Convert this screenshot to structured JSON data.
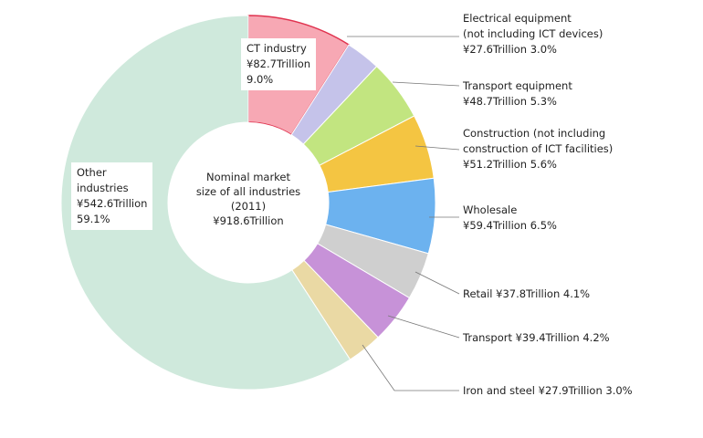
{
  "chart_data": {
    "type": "pie",
    "variant": "donut",
    "center_label": [
      "Nominal market",
      "size of all industries",
      "(2011)",
      "¥918.6Trillion"
    ],
    "slices": [
      {
        "name": "CT industry",
        "value": 82.7,
        "share": 9.0,
        "color": "#f7a8b4",
        "lines": [
          "CT industry",
          "¥82.7Trillion",
          "9.0%"
        ]
      },
      {
        "name": "Electrical equipment (not including ICT devices)",
        "value": 27.6,
        "share": 3.0,
        "color": "#c5c3ea",
        "lines": [
          "Electrical equipment",
          "(not including ICT devices)",
          "¥27.6Trillion  3.0%"
        ]
      },
      {
        "name": "Transport equipment",
        "value": 48.7,
        "share": 5.3,
        "color": "#c2e580",
        "lines": [
          "Transport equipment",
          "¥48.7Trillion  5.3%"
        ]
      },
      {
        "name": "Construction (not including construction of ICT facilities)",
        "value": 51.2,
        "share": 5.6,
        "color": "#f4c542",
        "lines": [
          "Construction (not including",
          "construction of ICT facilities)",
          "¥51.2Trillion  5.6%"
        ]
      },
      {
        "name": "Wholesale",
        "value": 59.4,
        "share": 6.5,
        "color": "#6cb2ef",
        "lines": [
          "Wholesale",
          "¥59.4Trillion  6.5%"
        ]
      },
      {
        "name": "Retail",
        "value": 37.8,
        "share": 4.1,
        "color": "#cfcfcf",
        "lines": [
          "Retail ¥37.8Trillion  4.1%"
        ]
      },
      {
        "name": "Transport",
        "value": 39.4,
        "share": 4.2,
        "color": "#c792d8",
        "lines": [
          "Transport ¥39.4Trillion  4.2%"
        ]
      },
      {
        "name": "Iron and steel",
        "value": 27.9,
        "share": 3.0,
        "color": "#ead9a4",
        "lines": [
          "Iron and steel ¥27.9Trillion  3.0%"
        ]
      },
      {
        "name": "Other industries",
        "value": 542.6,
        "share": 59.1,
        "color": "#cfe9dc",
        "lines": [
          "Other",
          "industries",
          "¥542.6Trillion",
          "59.1%"
        ]
      }
    ]
  }
}
